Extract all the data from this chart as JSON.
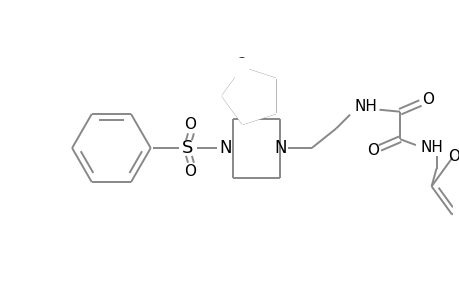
{
  "bg_color": "#ffffff",
  "line_color": "#888888",
  "text_color": "#000000",
  "line_width": 1.4,
  "figsize": [
    4.6,
    3.0
  ],
  "dpi": 100,
  "xlim": [
    0,
    460
  ],
  "ylim": [
    0,
    300
  ]
}
